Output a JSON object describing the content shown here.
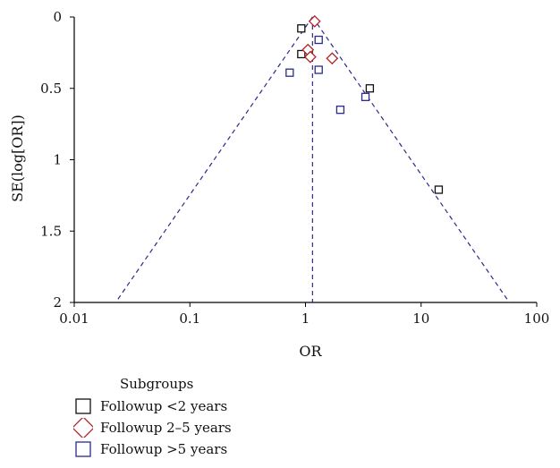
{
  "chart_data": {
    "type": "scatter",
    "title": "",
    "xlabel": "OR",
    "ylabel": "SE(log[OR])",
    "x_scale": "log",
    "xlim": [
      0.01,
      100
    ],
    "ylim": [
      0,
      2
    ],
    "y_reversed": true,
    "x_ticks": [
      "0.01",
      "0.1",
      "1",
      "10",
      "100"
    ],
    "y_ticks": [
      "0",
      "0.5",
      "1",
      "1.5",
      "2"
    ],
    "grid": false,
    "pooled_or": 1.15,
    "series": [
      {
        "name": "Followup <2 years",
        "marker": "square",
        "color": "#111111",
        "points": [
          [
            0.92,
            0.08
          ],
          [
            0.92,
            0.26
          ],
          [
            3.6,
            0.5
          ],
          [
            14.2,
            1.21
          ]
        ]
      },
      {
        "name": "Followup 2–5 years",
        "marker": "diamond",
        "color": "#b22222",
        "points": [
          [
            1.2,
            0.03
          ],
          [
            1.05,
            0.23
          ],
          [
            1.1,
            0.28
          ],
          [
            1.7,
            0.29
          ]
        ]
      },
      {
        "name": "Followup >5 years",
        "marker": "square",
        "color": "#2a2a8a",
        "points": [
          [
            1.3,
            0.16
          ],
          [
            0.73,
            0.39
          ],
          [
            1.3,
            0.37
          ],
          [
            3.3,
            0.56
          ],
          [
            2.0,
            0.65
          ]
        ]
      }
    ],
    "legend": {
      "title": "Subgroups",
      "position": "bottom-left"
    },
    "reference_color": "#2a2a8a"
  }
}
